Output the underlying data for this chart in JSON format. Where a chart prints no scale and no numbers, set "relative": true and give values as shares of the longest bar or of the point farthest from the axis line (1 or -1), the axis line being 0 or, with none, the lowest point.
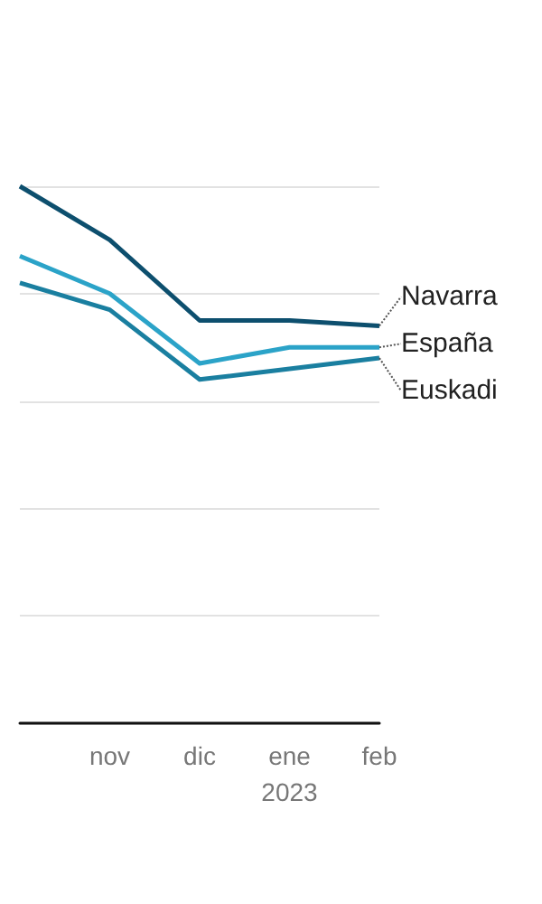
{
  "chart_data": {
    "type": "line",
    "relative": true,
    "grid": "y",
    "legend": false,
    "marker": "none",
    "line_style": "solid",
    "categories": [
      null,
      "nov",
      "dic",
      "ene\n2023",
      "feb"
    ],
    "series": [
      {
        "name": "Navarra",
        "color": "#0d4f6e",
        "values": [
          1.0,
          0.9,
          0.75,
          0.75,
          0.74
        ]
      },
      {
        "name": "España",
        "color": "#2ba3c8",
        "values": [
          0.87,
          0.8,
          0.67,
          0.7,
          0.7
        ]
      },
      {
        "name": "Euskadi",
        "color": "#1a7fa0",
        "values": [
          0.82,
          0.77,
          0.64,
          0.66,
          0.68
        ]
      }
    ]
  }
}
